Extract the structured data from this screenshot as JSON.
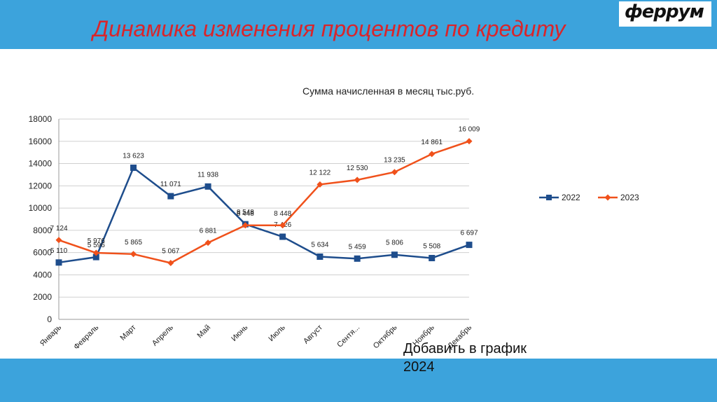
{
  "slide": {
    "title": "Динамика изменения процентов по кредиту",
    "logo_text": "феррум",
    "footnote_line1": "Добавить в график",
    "footnote_line2": "2024"
  },
  "colors": {
    "bar": "#3ca3dc",
    "title": "#d9252b",
    "series_2022": "#1e4d8c",
    "series_2023": "#f0511b"
  },
  "chart_data": {
    "type": "line",
    "title": "Сумма начисленная в месяц тыс.руб.",
    "categories": [
      "Январь",
      "Февраль",
      "Март",
      "Апрель",
      "Май",
      "Июнь",
      "Июль",
      "Август",
      "Сентя...",
      "Октябрь",
      "Ноябрь",
      "Декабрь"
    ],
    "series": [
      {
        "name": "2022",
        "color": "#1e4d8c",
        "marker": "square",
        "values": [
          5110,
          5596,
          13623,
          11071,
          11938,
          8548,
          7426,
          5634,
          5459,
          5806,
          5508,
          6697
        ],
        "labels": [
          "5 110",
          "5 596",
          "13 623",
          "11 071",
          "11 938",
          "8 548",
          "7 426",
          "5 634",
          "5 459",
          "5 806",
          "5 508",
          "6 697"
        ]
      },
      {
        "name": "2023",
        "color": "#f0511b",
        "marker": "diamond",
        "values": [
          7124,
          5976,
          5865,
          5067,
          6881,
          8448,
          8448,
          12122,
          12530,
          13235,
          14861,
          16009
        ],
        "labels": [
          "7 124",
          "5 976",
          "5 865",
          "5 067",
          "6 881",
          "8 448",
          "8 448",
          "12 122",
          "12 530",
          "13 235",
          "14 861",
          "16 009"
        ]
      }
    ],
    "yticks": [
      "0",
      "2000",
      "4000",
      "6000",
      "8000",
      "10000",
      "12000",
      "14000",
      "16000",
      "18000"
    ],
    "ylim": [
      0,
      18000
    ],
    "grid": true,
    "legend": "right"
  }
}
